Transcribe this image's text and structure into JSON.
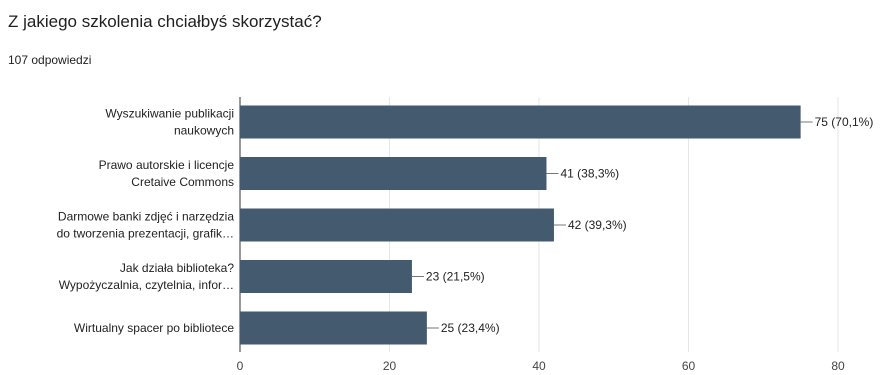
{
  "title": "Z jakiego szkolenia chciałbyś skorzystać?",
  "subtitle": "107 odpowiedzi",
  "chart_data": {
    "type": "bar",
    "orientation": "horizontal",
    "categories": [
      [
        "Wyszukiwanie publikacji",
        "naukowych"
      ],
      [
        "Prawo autorskie i licencje",
        "Cretaive Commons"
      ],
      [
        "Darmowe banki zdjęć i narzędzia",
        "do tworzenia prezentacji, grafik…"
      ],
      [
        "Jak działa biblioteka?",
        "Wypożyczalnia, czytelnia, infor…"
      ],
      [
        "Wirtualny spacer po bibliotece"
      ]
    ],
    "values": [
      75,
      41,
      42,
      23,
      25
    ],
    "value_labels": [
      "75 (70,1%)",
      "41 (38,3%)",
      "42 (39,3%)",
      "23 (21,5%)",
      "25 (23,4%)"
    ],
    "xlim": [
      0,
      80
    ],
    "x_ticks": [
      0,
      20,
      40,
      60,
      80
    ],
    "grid": true,
    "bar_color": "#445a6e",
    "xlabel": "",
    "ylabel": ""
  }
}
